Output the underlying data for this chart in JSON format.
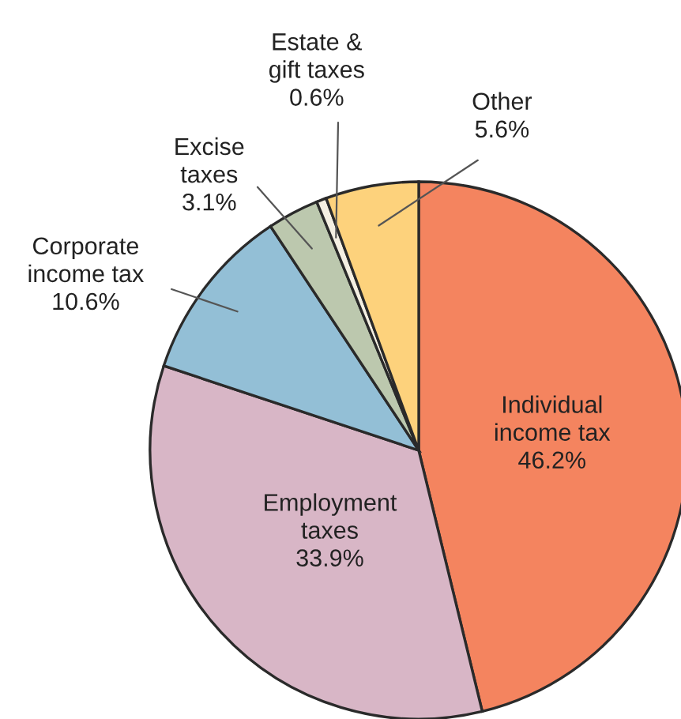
{
  "chart_data": {
    "type": "pie",
    "categories": [
      "Individual\nincome tax",
      "Employment\ntaxes",
      "Corporate\nincome tax",
      "Excise\ntaxes",
      "Estate &\ngift taxes",
      "Other"
    ],
    "values": [
      46.2,
      33.9,
      10.6,
      3.1,
      0.6,
      5.6
    ],
    "value_labels": [
      "46.2%",
      "33.9%",
      "10.6%",
      "3.1%",
      "0.6%",
      "5.6%"
    ],
    "colors": [
      "#f4845f",
      "#d8b6c6",
      "#93bfd6",
      "#bcc8ae",
      "#f4efe2",
      "#fdd27c"
    ]
  }
}
